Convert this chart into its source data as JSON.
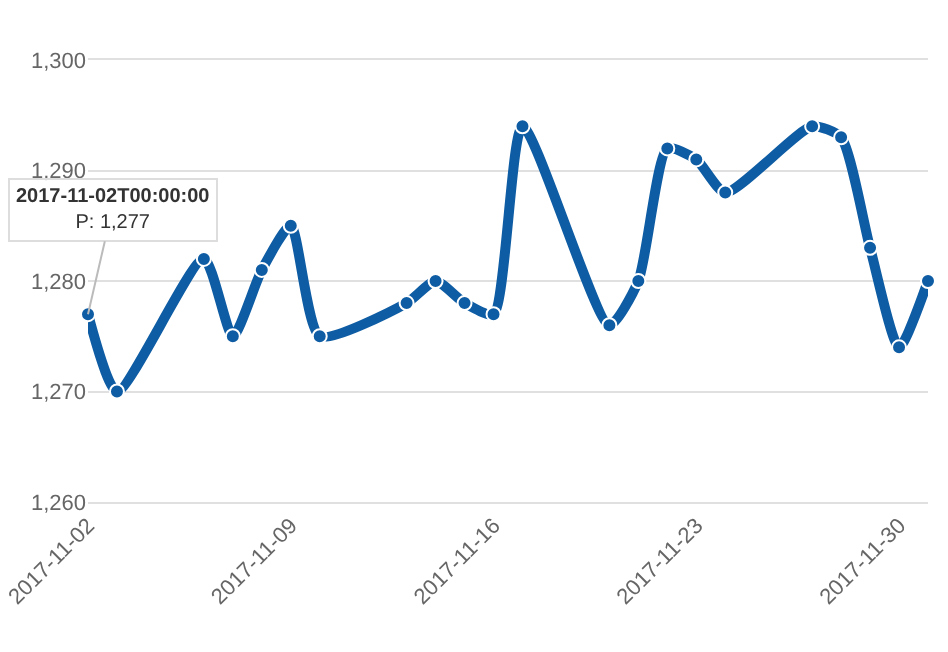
{
  "chart_data": {
    "type": "line",
    "x": [
      "2017-11-02",
      "2017-11-03",
      "2017-11-06",
      "2017-11-07",
      "2017-11-08",
      "2017-11-09",
      "2017-11-10",
      "2017-11-13",
      "2017-11-14",
      "2017-11-15",
      "2017-11-16",
      "2017-11-17",
      "2017-11-20",
      "2017-11-21",
      "2017-11-22",
      "2017-11-23",
      "2017-11-24",
      "2017-11-27",
      "2017-11-28",
      "2017-11-29",
      "2017-11-30",
      "2017-12-01"
    ],
    "series": [
      {
        "color": "#0e5ca3",
        "values": [
          1277,
          1270,
          1282,
          1275,
          1281,
          1285,
          1275,
          1278,
          1280,
          1278,
          1277,
          1294,
          1276,
          1280,
          1292,
          1291,
          1288,
          1294,
          1293,
          1283,
          1274,
          1280
        ]
      }
    ],
    "xlim": [
      "2017-11-02",
      "2017-12-01"
    ],
    "xticks": [
      "2017-11-02",
      "2017-11-09",
      "2017-11-16",
      "2017-11-23",
      "2017-11-30"
    ],
    "ylim": [
      1260,
      1300
    ],
    "yticks": [
      {
        "value": 1260,
        "label": "1,260"
      },
      {
        "value": 1270,
        "label": "1,270"
      },
      {
        "value": 1280,
        "label": "1,280"
      },
      {
        "value": 1290,
        "label": "1,290"
      },
      {
        "value": 1300,
        "label": "1,300"
      }
    ],
    "grid": "y",
    "marker": "circle",
    "line_style": "solid",
    "annotations": [
      {
        "text": "2017-11-02T00:00:00\nP: 1,277",
        "x": "2017-11-02",
        "y": 1277
      }
    ]
  }
}
